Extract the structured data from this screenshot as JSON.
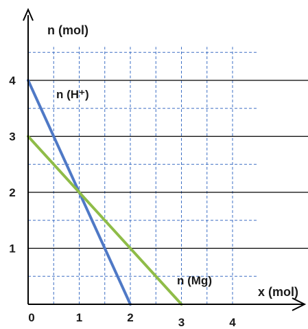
{
  "chart_data": {
    "type": "line",
    "ylabel": "n (mol)",
    "xlabel": "x (mol)",
    "xlim": [
      0,
      4.4
    ],
    "ylim": [
      0,
      4.5
    ],
    "x_ticks": [
      0,
      1,
      2,
      3,
      4
    ],
    "x_tick_labels": [
      "0",
      "1",
      "2",
      "3",
      "4"
    ],
    "y_ticks": [
      1,
      2,
      3,
      4
    ],
    "y_tick_labels": [
      "1",
      "2",
      "3",
      "4"
    ],
    "grid": "minor dashed blue every 0.5, solid black horizontals at integer y",
    "series": [
      {
        "name": "n (H⁺)",
        "color": "#4f79c6",
        "x": [
          0,
          2
        ],
        "y": [
          4,
          0
        ]
      },
      {
        "name": "n (Mg)",
        "color": "#8fbc48",
        "x": [
          0,
          3
        ],
        "y": [
          3,
          0
        ]
      }
    ],
    "colors": {
      "axis": "#000000",
      "grid_minor": "#3d6fc4",
      "grid_major": "#000000"
    }
  }
}
